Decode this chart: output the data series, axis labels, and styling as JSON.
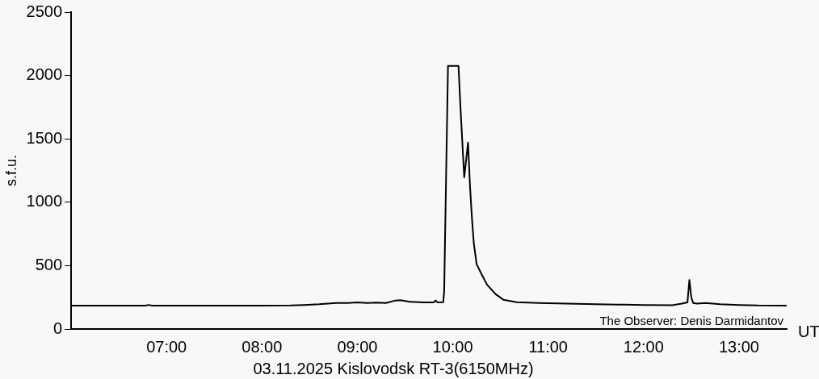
{
  "chart_data": {
    "type": "line",
    "title": "03.11.2025 Kislovodsk RT-3(6150MHz)",
    "xlabel": "UT",
    "ylabel": "s.f.u.",
    "annotations": [
      "The Observer: Denis Darmidantov"
    ],
    "xlim": [
      6,
      13.5
    ],
    "xticks": [
      {
        "value": 7,
        "label": "07:00"
      },
      {
        "value": 8,
        "label": "08:00"
      },
      {
        "value": 9,
        "label": "09:00"
      },
      {
        "value": 10,
        "label": "10:00"
      },
      {
        "value": 11,
        "label": "11:00"
      },
      {
        "value": 12,
        "label": "12:00"
      },
      {
        "value": 13,
        "label": "13:00"
      }
    ],
    "ylim": [
      0,
      2500
    ],
    "yticks": [
      0,
      500,
      1000,
      1500,
      2000,
      2500
    ],
    "grid": false,
    "legend": false,
    "marker": "none",
    "line_style": "solid",
    "series": [
      {
        "color": "#000000",
        "x": [
          6.0,
          6.5,
          6.78,
          6.81,
          6.85,
          7.5,
          8.0,
          8.3,
          8.44,
          8.6,
          8.78,
          8.9,
          9.0,
          9.1,
          9.2,
          9.3,
          9.4,
          9.45,
          9.55,
          9.7,
          9.8,
          9.82,
          9.84,
          9.9,
          9.91,
          9.93,
          9.95,
          10.06,
          10.08,
          10.12,
          10.16,
          10.18,
          10.2,
          10.22,
          10.25,
          10.31,
          10.36,
          10.45,
          10.53,
          10.67,
          10.9,
          11.2,
          11.5,
          11.8,
          12.0,
          12.3,
          12.4,
          12.46,
          12.48,
          12.5,
          12.52,
          12.56,
          12.65,
          12.8,
          13.0,
          13.2,
          13.5
        ],
        "values": [
          185,
          185,
          185,
          190,
          185,
          185,
          185,
          186,
          190,
          195,
          205,
          205,
          210,
          205,
          208,
          205,
          225,
          228,
          215,
          210,
          210,
          225,
          210,
          212,
          300,
          1200,
          2076,
          2076,
          1758,
          1197,
          1471,
          1135,
          885,
          680,
          511,
          420,
          349,
          274,
          231,
          212,
          205,
          200,
          195,
          192,
          190,
          188,
          200,
          210,
          387,
          250,
          205,
          200,
          205,
          195,
          190,
          186,
          185
        ]
      }
    ]
  }
}
